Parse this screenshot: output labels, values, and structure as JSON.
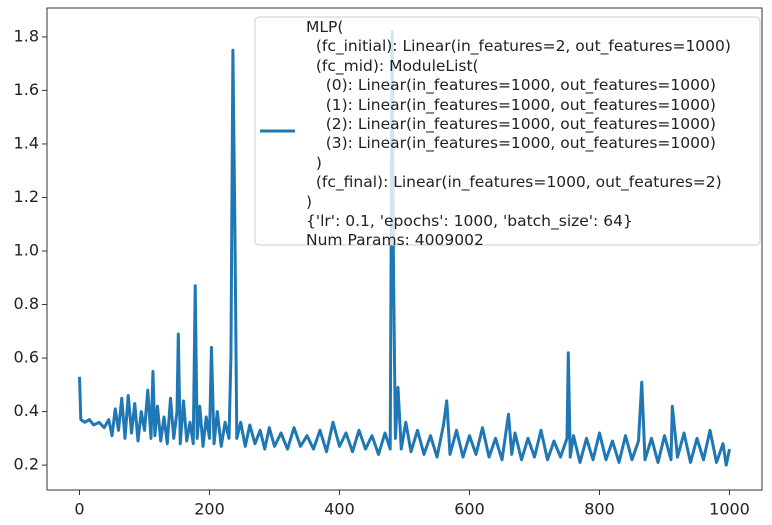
{
  "chart_data": {
    "type": "line",
    "x": [
      0,
      2,
      8,
      15,
      22,
      30,
      38,
      45,
      50,
      55,
      60,
      65,
      70,
      75,
      80,
      85,
      90,
      95,
      100,
      105,
      110,
      113,
      116,
      120,
      125,
      130,
      135,
      140,
      145,
      150,
      152,
      155,
      160,
      165,
      170,
      175,
      178,
      181,
      185,
      190,
      195,
      200,
      203,
      207,
      212,
      218,
      224,
      230,
      233,
      236,
      239,
      242,
      248,
      255,
      262,
      270,
      278,
      285,
      292,
      300,
      310,
      320,
      330,
      340,
      350,
      360,
      370,
      380,
      390,
      400,
      410,
      420,
      430,
      440,
      450,
      460,
      470,
      478,
      481,
      483,
      486,
      490,
      495,
      502,
      510,
      520,
      530,
      540,
      550,
      560,
      565,
      570,
      580,
      590,
      600,
      610,
      620,
      630,
      640,
      650,
      660,
      665,
      670,
      680,
      690,
      700,
      710,
      720,
      730,
      740,
      750,
      752,
      755,
      760,
      770,
      780,
      790,
      800,
      810,
      820,
      830,
      840,
      850,
      860,
      865,
      870,
      880,
      890,
      900,
      910,
      912,
      920,
      930,
      940,
      950,
      960,
      970,
      980,
      990,
      995,
      1000
    ],
    "series": [
      {
        "name": "MLP(\n  (fc_initial): Linear(in_features=2, out_features=1000)\n  (fc_mid): ModuleList(\n    (0): Linear(in_features=1000, out_features=1000)\n    (1): Linear(in_features=1000, out_features=1000)\n    (2): Linear(in_features=1000, out_features=1000)\n    (3): Linear(in_features=1000, out_features=1000)\n  )\n  (fc_final): Linear(in_features=1000, out_features=2)\n)\n{'lr': 0.1, 'epochs': 1000, 'batch_size': 64}\nNum Params: 4009002",
        "color": "#1f77b4",
        "values": [
          0.53,
          0.37,
          0.36,
          0.37,
          0.35,
          0.36,
          0.34,
          0.37,
          0.31,
          0.41,
          0.33,
          0.45,
          0.3,
          0.46,
          0.32,
          0.43,
          0.29,
          0.4,
          0.33,
          0.48,
          0.3,
          0.55,
          0.31,
          0.42,
          0.29,
          0.38,
          0.28,
          0.45,
          0.3,
          0.4,
          0.69,
          0.28,
          0.44,
          0.29,
          0.36,
          0.28,
          0.87,
          0.3,
          0.42,
          0.27,
          0.38,
          0.3,
          0.64,
          0.28,
          0.4,
          0.27,
          0.36,
          0.3,
          0.61,
          1.75,
          1.1,
          0.3,
          0.36,
          0.27,
          0.35,
          0.28,
          0.33,
          0.26,
          0.34,
          0.27,
          0.32,
          0.26,
          0.34,
          0.27,
          0.31,
          0.26,
          0.33,
          0.25,
          0.36,
          0.27,
          0.32,
          0.25,
          0.33,
          0.26,
          0.31,
          0.24,
          0.32,
          0.26,
          1.82,
          0.95,
          0.3,
          0.49,
          0.26,
          0.36,
          0.25,
          0.33,
          0.24,
          0.31,
          0.23,
          0.35,
          0.44,
          0.24,
          0.33,
          0.23,
          0.31,
          0.24,
          0.34,
          0.23,
          0.3,
          0.22,
          0.39,
          0.24,
          0.32,
          0.22,
          0.3,
          0.23,
          0.33,
          0.22,
          0.29,
          0.23,
          0.3,
          0.62,
          0.23,
          0.31,
          0.21,
          0.3,
          0.22,
          0.32,
          0.22,
          0.29,
          0.21,
          0.31,
          0.22,
          0.29,
          0.51,
          0.22,
          0.3,
          0.21,
          0.31,
          0.22,
          0.42,
          0.23,
          0.32,
          0.21,
          0.3,
          0.22,
          0.33,
          0.21,
          0.28,
          0.2,
          0.26
        ]
      }
    ],
    "xlim": [
      -50,
      1050
    ],
    "xticks": [
      0,
      200,
      400,
      600,
      800,
      1000
    ],
    "ylim": [
      0.107,
      1.908
    ],
    "yticks": [
      0.2,
      0.4,
      0.6,
      0.8,
      {
        "value": 1,
        "label": "1.0"
      },
      1.2,
      1.4,
      1.6,
      1.8
    ],
    "grid": false,
    "legend": "upper right"
  }
}
